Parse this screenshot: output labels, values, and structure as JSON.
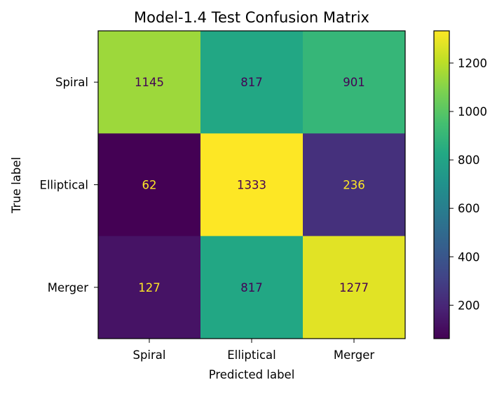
{
  "chart_data": {
    "type": "heatmap",
    "title": "Model-1.4 Test Confusion Matrix",
    "xlabel": "Predicted label",
    "ylabel": "True label",
    "x_categories": [
      "Spiral",
      "Elliptical",
      "Merger"
    ],
    "y_categories": [
      "Spiral",
      "Elliptical",
      "Merger"
    ],
    "values": [
      [
        1145,
        817,
        901
      ],
      [
        62,
        1333,
        236
      ],
      [
        127,
        817,
        1277
      ]
    ],
    "colormap": "viridis",
    "color_range": [
      62,
      1333
    ],
    "colorbar_ticks": [
      200,
      400,
      600,
      800,
      1000,
      1200
    ],
    "text_colors": {
      "on_dark": "#fde725",
      "on_light": "#440154"
    }
  }
}
